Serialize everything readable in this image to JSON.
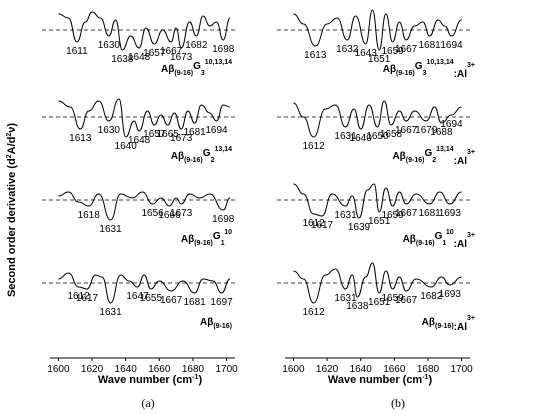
{
  "ylabel_main": "Second order derivative (d",
  "ylabel_sup1": "2",
  "ylabel_mid": "A/d",
  "ylabel_sup2": "2",
  "ylabel_end": "ν)",
  "panels": [
    {
      "label": "(a)",
      "xlabel_main": "Wave number (cm",
      "xlabel_sup": "-1",
      "xlabel_end": ")"
    },
    {
      "label": "(b)",
      "xlabel_main": "Wave number (cm",
      "xlabel_sup": "-1",
      "xlabel_end": ")"
    }
  ],
  "chart_data": [
    {
      "type": "line",
      "panel": "(a)",
      "xlabel": "Wave number (cm-1)",
      "ylabel": "Second order derivative (d2A/d2ν)",
      "xlim": [
        1595,
        1705
      ],
      "xticks": [
        1600,
        1620,
        1640,
        1660,
        1680,
        1700
      ],
      "series": [
        {
          "name": "Aβ(9-16)G3 10,13,14",
          "base": "Aβ",
          "sub": "(9-16)",
          "mid": "G",
          "midsub": "3",
          "sup": "10,13,14",
          "peaks": [
            1611,
            1630,
            1638,
            1648,
            1657,
            1667,
            1673,
            1682,
            1698
          ],
          "x": [
            1600,
            1606,
            1611,
            1616,
            1620,
            1625,
            1630,
            1634,
            1638,
            1643,
            1648,
            1652,
            1657,
            1662,
            1667,
            1670,
            1673,
            1678,
            1682,
            1686,
            1690,
            1694,
            1698,
            1702
          ],
          "y": [
            0.8,
            0.6,
            -0.6,
            0.4,
            0.9,
            0.6,
            -0.3,
            0.5,
            -1.0,
            -0.3,
            -0.9,
            0.1,
            -0.7,
            0.0,
            -0.6,
            0.1,
            -0.9,
            0.4,
            -0.3,
            0.7,
            0.2,
            0.4,
            -0.5,
            0.6
          ]
        },
        {
          "name": "Aβ(9-16)G2 13,14",
          "base": "Aβ",
          "sub": "(9-16)",
          "mid": "G",
          "midsub": "2",
          "sup": "13,14",
          "peaks": [
            1613,
            1630,
            1640,
            1648,
            1657,
            1665,
            1673,
            1681,
            1694
          ],
          "x": [
            1600,
            1607,
            1613,
            1618,
            1624,
            1630,
            1636,
            1640,
            1645,
            1648,
            1653,
            1657,
            1661,
            1665,
            1669,
            1673,
            1677,
            1681,
            1685,
            1690,
            1694,
            1698,
            1702
          ],
          "y": [
            0.8,
            0.5,
            -0.6,
            0.3,
            0.8,
            -0.2,
            0.9,
            -1.0,
            -0.2,
            -0.7,
            0.3,
            -0.4,
            0.1,
            -0.4,
            0.2,
            -0.6,
            0.3,
            -0.3,
            0.6,
            0.2,
            -0.2,
            0.6,
            0.5
          ]
        },
        {
          "name": "Aβ(9-16)G1 10",
          "base": "Aβ",
          "sub": "(9-16)",
          "mid": "G",
          "midsub": "1",
          "sup": "10",
          "peaks": [
            1618,
            1631,
            1656,
            1666,
            1673,
            1698
          ],
          "x": [
            1600,
            1606,
            1612,
            1618,
            1624,
            1631,
            1637,
            1644,
            1650,
            1656,
            1661,
            1666,
            1670,
            1673,
            1678,
            1684,
            1690,
            1698,
            1702
          ],
          "y": [
            0.2,
            0.4,
            -0.1,
            -0.3,
            0.3,
            -1.0,
            0.3,
            0.1,
            0.4,
            -0.2,
            0.1,
            -0.3,
            0.1,
            -0.2,
            0.3,
            0.1,
            0.3,
            -0.5,
            0.1
          ]
        },
        {
          "name": "Aβ(9-16)",
          "base": "Aβ",
          "sub": "(9-16)",
          "mid": "",
          "midsub": "",
          "sup": "",
          "peaks": [
            1612,
            1617,
            1631,
            1647,
            1655,
            1667,
            1681,
            1697
          ],
          "x": [
            1600,
            1606,
            1612,
            1617,
            1622,
            1626,
            1631,
            1637,
            1642,
            1647,
            1651,
            1655,
            1660,
            1667,
            1674,
            1681,
            1686,
            1692,
            1697,
            1702
          ],
          "y": [
            0.2,
            0.5,
            -0.2,
            -0.3,
            0.4,
            0.3,
            -1.0,
            0.4,
            0.1,
            -0.2,
            0.4,
            -0.3,
            0.1,
            -0.4,
            0.1,
            -0.5,
            0.2,
            0.1,
            -0.5,
            0.2
          ]
        }
      ]
    },
    {
      "type": "line",
      "panel": "(b)",
      "xlabel": "Wave number (cm-1)",
      "ylabel": "Second order derivative (d2A/d2ν)",
      "xlim": [
        1595,
        1705
      ],
      "xticks": [
        1600,
        1620,
        1640,
        1660,
        1680,
        1700
      ],
      "series": [
        {
          "name": "Aβ(9-16)G3 10,13,14:Al3+",
          "base": "Aβ",
          "sub": "(9-16)",
          "mid": "G",
          "midsub": "3",
          "sup": "10,13,14",
          "tail": ":Al",
          "tailsup": "3+",
          "peaks": [
            1613,
            1632,
            1643,
            1651,
            1659,
            1667,
            1681,
            1694
          ],
          "x": [
            1600,
            1606,
            1613,
            1620,
            1626,
            1632,
            1637,
            1643,
            1647,
            1651,
            1655,
            1659,
            1663,
            1667,
            1672,
            1677,
            1681,
            1686,
            1690,
            1694,
            1700
          ],
          "y": [
            0.8,
            0.3,
            -0.8,
            0.3,
            0.6,
            -0.5,
            0.7,
            -0.7,
            1.0,
            -1.0,
            0.8,
            -0.6,
            0.4,
            -0.5,
            0.2,
            0.4,
            -0.3,
            0.5,
            0.2,
            -0.3,
            0.5
          ]
        },
        {
          "name": "Aβ(9-16)G2 13,14:Al3+",
          "base": "Aβ",
          "sub": "(9-16)",
          "mid": "G",
          "midsub": "2",
          "sup": "13,14",
          "tail": ":Al",
          "tailsup": "3+",
          "peaks": [
            1612,
            1631,
            1640,
            1650,
            1658,
            1667,
            1679,
            1688,
            1694
          ],
          "x": [
            1600,
            1606,
            1612,
            1619,
            1625,
            1631,
            1636,
            1640,
            1645,
            1650,
            1654,
            1658,
            1663,
            1667,
            1672,
            1679,
            1684,
            1688,
            1694,
            1700
          ],
          "y": [
            0.7,
            0.0,
            -1.0,
            0.4,
            0.6,
            -0.5,
            0.4,
            -0.6,
            0.6,
            -0.5,
            0.8,
            -0.4,
            0.3,
            -0.2,
            0.3,
            -0.2,
            0.5,
            -0.3,
            0.1,
            0.5
          ]
        },
        {
          "name": "Aβ(9-16)G1 10:Al3+",
          "base": "Aβ",
          "sub": "(9-16)",
          "mid": "G",
          "midsub": "1",
          "sup": "10",
          "tail": ":Al",
          "tailsup": "3+",
          "peaks": [
            1612,
            1617,
            1631,
            1639,
            1651,
            1659,
            1667,
            1681,
            1693
          ],
          "x": [
            1600,
            1606,
            1612,
            1617,
            1623,
            1631,
            1635,
            1639,
            1644,
            1648,
            1651,
            1655,
            1659,
            1663,
            1667,
            1673,
            1681,
            1687,
            1693,
            1700
          ],
          "y": [
            0.8,
            0.3,
            -0.7,
            -0.8,
            0.3,
            -0.3,
            0.2,
            -0.9,
            0.5,
            0.8,
            -0.6,
            0.6,
            -0.3,
            0.4,
            -0.2,
            0.3,
            -0.2,
            0.4,
            -0.2,
            0.4
          ]
        },
        {
          "name": "Aβ(9-16):Al3+",
          "base": "Aβ",
          "sub": "(9-16)",
          "mid": "",
          "midsub": "",
          "sup": "",
          "tail": ":Al",
          "tailsup": "3+",
          "peaks": [
            1612,
            1631,
            1638,
            1651,
            1659,
            1667,
            1682,
            1693
          ],
          "x": [
            1600,
            1606,
            1612,
            1619,
            1625,
            1631,
            1635,
            1638,
            1643,
            1647,
            1651,
            1655,
            1659,
            1663,
            1667,
            1673,
            1682,
            1688,
            1693,
            1700
          ],
          "y": [
            0.6,
            0.2,
            -1.0,
            0.4,
            0.7,
            -0.3,
            0.4,
            -0.7,
            0.3,
            1.0,
            -0.5,
            0.6,
            -0.3,
            0.3,
            -0.4,
            0.2,
            -0.2,
            0.3,
            -0.1,
            0.3
          ]
        }
      ]
    }
  ]
}
